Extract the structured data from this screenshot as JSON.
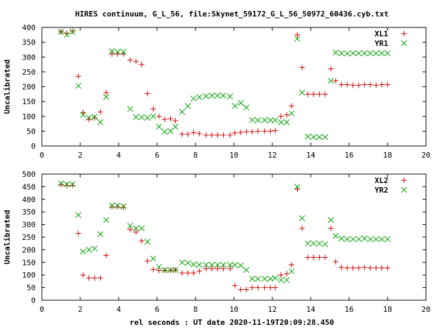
{
  "title": "HIRES continuum, G_L_56, file:Skynet_59172_G_L_56_50972_60436.cyb.txt",
  "xlabel": "rel seconds : UT date 2020-11-19T20:09:28.450",
  "chart_data": [
    {
      "type": "scatter",
      "ylabel": "Uncalibrated",
      "xlim": [
        0,
        20
      ],
      "ylim": [
        0,
        400
      ],
      "xticks": [
        "0",
        "2",
        "4",
        "6",
        "8",
        "10",
        "12",
        "14",
        "16",
        "18",
        "20"
      ],
      "yticks": [
        "0",
        "50",
        "100",
        "150",
        "200",
        "250",
        "300",
        "350",
        "400"
      ],
      "legend_position": "top-right",
      "series": [
        {
          "name": "XL1",
          "color": "#d00000",
          "marker": "plus",
          "x": [
            1.0,
            1.3,
            1.6,
            1.9,
            2.15,
            2.45,
            2.75,
            3.05,
            3.35,
            3.65,
            3.95,
            4.25,
            4.6,
            4.9,
            5.2,
            5.5,
            5.8,
            6.1,
            6.4,
            6.7,
            6.95,
            7.3,
            7.6,
            7.9,
            8.2,
            8.55,
            8.85,
            9.15,
            9.45,
            9.8,
            10.05,
            10.35,
            10.65,
            10.95,
            11.25,
            11.6,
            11.9,
            12.15,
            12.45,
            12.75,
            13.0,
            13.3,
            13.55,
            13.85,
            14.15,
            14.45,
            14.75,
            15.05,
            15.3,
            15.6,
            15.9,
            16.2,
            16.5,
            16.8,
            17.1,
            17.4,
            17.7,
            18.0
          ],
          "y": [
            385,
            380,
            388,
            235,
            113,
            90,
            95,
            115,
            180,
            310,
            310,
            310,
            290,
            285,
            275,
            177,
            125,
            100,
            90,
            92,
            85,
            40,
            40,
            45,
            42,
            37,
            37,
            37,
            37,
            37,
            44,
            46,
            48,
            48,
            50,
            50,
            50,
            52,
            100,
            105,
            135,
            375,
            265,
            175,
            175,
            175,
            175,
            260,
            220,
            207,
            207,
            205,
            205,
            207,
            207,
            205,
            207,
            207
          ]
        },
        {
          "name": "YR1",
          "color": "#00a000",
          "marker": "cross",
          "x": [
            1.0,
            1.3,
            1.6,
            1.9,
            2.15,
            2.45,
            2.75,
            3.05,
            3.35,
            3.65,
            3.95,
            4.25,
            4.6,
            4.9,
            5.2,
            5.5,
            5.8,
            6.1,
            6.4,
            6.7,
            6.95,
            7.3,
            7.6,
            7.9,
            8.2,
            8.55,
            8.85,
            9.15,
            9.45,
            9.8,
            10.05,
            10.35,
            10.65,
            10.95,
            11.25,
            11.6,
            11.9,
            12.15,
            12.45,
            12.75,
            13.0,
            13.3,
            13.55,
            13.85,
            14.15,
            14.45,
            14.75,
            15.05,
            15.3,
            15.6,
            15.9,
            16.2,
            16.5,
            16.8,
            17.1,
            17.4,
            17.7,
            18.0
          ],
          "y": [
            385,
            375,
            385,
            203,
            105,
            95,
            98,
            80,
            165,
            320,
            318,
            318,
            125,
            98,
            97,
            95,
            100,
            65,
            48,
            50,
            65,
            115,
            135,
            160,
            165,
            168,
            170,
            170,
            170,
            167,
            135,
            145,
            130,
            88,
            87,
            87,
            87,
            87,
            80,
            80,
            110,
            362,
            180,
            32,
            30,
            30,
            30,
            220,
            315,
            313,
            312,
            313,
            313,
            313,
            313,
            313,
            313,
            313
          ]
        }
      ]
    },
    {
      "type": "scatter",
      "ylabel": "Uncalibrated",
      "xlim": [
        0,
        20
      ],
      "ylim": [
        0,
        500
      ],
      "xticks": [
        "0",
        "2",
        "4",
        "6",
        "8",
        "10",
        "12",
        "14",
        "16",
        "18",
        "20"
      ],
      "yticks": [
        "0",
        "50",
        "100",
        "150",
        "200",
        "250",
        "300",
        "350",
        "400",
        "450",
        "500"
      ],
      "legend_position": "top-right",
      "series": [
        {
          "name": "XL2",
          "color": "#d00000",
          "marker": "plus",
          "x": [
            1.0,
            1.3,
            1.6,
            1.9,
            2.15,
            2.45,
            2.75,
            3.05,
            3.35,
            3.65,
            3.95,
            4.25,
            4.6,
            4.9,
            5.2,
            5.5,
            5.8,
            6.1,
            6.4,
            6.7,
            6.95,
            7.3,
            7.6,
            7.9,
            8.2,
            8.55,
            8.85,
            9.15,
            9.45,
            9.8,
            10.05,
            10.35,
            10.65,
            10.95,
            11.25,
            11.6,
            11.9,
            12.15,
            12.45,
            12.75,
            13.0,
            13.3,
            13.55,
            13.85,
            14.15,
            14.45,
            14.75,
            15.05,
            15.3,
            15.6,
            15.9,
            16.2,
            16.5,
            16.8,
            17.1,
            17.4,
            17.7,
            18.0
          ],
          "y": [
            458,
            455,
            455,
            265,
            100,
            88,
            88,
            88,
            178,
            370,
            370,
            368,
            280,
            270,
            235,
            155,
            122,
            118,
            118,
            118,
            120,
            108,
            108,
            108,
            115,
            125,
            125,
            125,
            125,
            125,
            58,
            42,
            42,
            50,
            50,
            50,
            50,
            50,
            100,
            105,
            140,
            440,
            285,
            170,
            170,
            170,
            170,
            285,
            153,
            130,
            128,
            128,
            128,
            130,
            128,
            128,
            128,
            128
          ]
        },
        {
          "name": "YR2",
          "color": "#00a000",
          "marker": "cross",
          "x": [
            1.0,
            1.3,
            1.6,
            1.9,
            2.15,
            2.45,
            2.75,
            3.05,
            3.35,
            3.65,
            3.95,
            4.25,
            4.6,
            4.9,
            5.2,
            5.5,
            5.8,
            6.1,
            6.4,
            6.7,
            6.95,
            7.3,
            7.6,
            7.9,
            8.2,
            8.55,
            8.85,
            9.15,
            9.45,
            9.8,
            10.05,
            10.35,
            10.65,
            10.95,
            11.25,
            11.6,
            11.9,
            12.15,
            12.45,
            12.75,
            13.0,
            13.3,
            13.55,
            13.85,
            14.15,
            14.45,
            14.75,
            15.05,
            15.3,
            15.6,
            15.9,
            16.2,
            16.5,
            16.8,
            17.1,
            17.4,
            17.7,
            18.0
          ],
          "y": [
            463,
            460,
            460,
            338,
            193,
            200,
            205,
            262,
            318,
            375,
            375,
            372,
            295,
            285,
            285,
            232,
            165,
            132,
            120,
            120,
            120,
            150,
            148,
            142,
            140,
            140,
            140,
            140,
            140,
            140,
            140,
            138,
            120,
            85,
            85,
            85,
            85,
            88,
            80,
            80,
            115,
            450,
            325,
            225,
            225,
            225,
            222,
            318,
            255,
            245,
            242,
            242,
            242,
            245,
            242,
            242,
            242,
            242
          ]
        }
      ]
    }
  ]
}
